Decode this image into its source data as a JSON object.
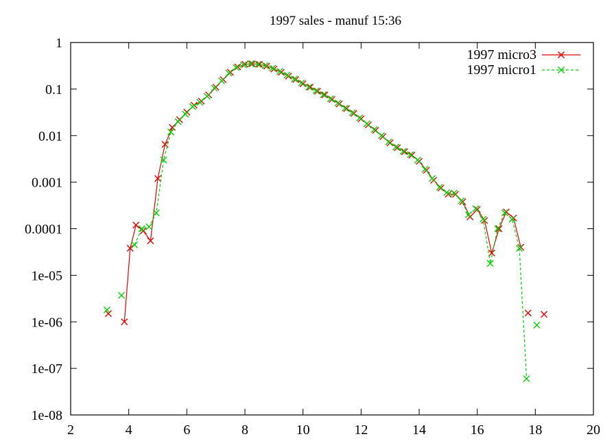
{
  "chart_data": {
    "type": "line",
    "title": "1997 sales - manuf 15:36",
    "xlabel": "",
    "ylabel": "",
    "xlim": [
      2,
      20
    ],
    "ylim": [
      1e-08,
      1
    ],
    "y_scale": "log",
    "x_ticks": [
      2,
      4,
      6,
      8,
      10,
      12,
      14,
      16,
      18,
      20
    ],
    "x_tick_labels": [
      "2",
      "4",
      "6",
      "8",
      "10",
      "12",
      "14",
      "16",
      "18",
      "20"
    ],
    "y_ticks": [
      1e-08,
      1e-07,
      1e-06,
      1e-05,
      0.0001,
      0.001,
      0.01,
      0.1,
      1
    ],
    "y_tick_labels": [
      "1e-08",
      "1e-07",
      "1e-06",
      "1e-05",
      "0.0001",
      "0.001",
      "0.01",
      "0.1",
      "1"
    ],
    "grid": false,
    "legend_position": "top-right",
    "series": [
      {
        "name": "1997 micro3",
        "color": "#e00000",
        "line_style": "solid",
        "marker": "x",
        "segments": [
          [
            [
              3.3,
              1.5e-06
            ]
          ],
          [
            [
              3.85,
              1e-06
            ],
            [
              4.05,
              3.8e-05
            ],
            [
              4.25,
              0.00012
            ],
            [
              4.5,
              9e-05
            ],
            [
              4.75,
              5.5e-05
            ],
            [
              5.0,
              0.0012
            ],
            [
              5.25,
              0.0065
            ],
            [
              5.5,
              0.015
            ],
            [
              5.75,
              0.022
            ],
            [
              6.0,
              0.032
            ],
            [
              6.25,
              0.045
            ],
            [
              6.5,
              0.055
            ],
            [
              6.75,
              0.075
            ],
            [
              7.0,
              0.11
            ],
            [
              7.25,
              0.16
            ],
            [
              7.5,
              0.23
            ],
            [
              7.75,
              0.3
            ],
            [
              8.0,
              0.34
            ],
            [
              8.25,
              0.35
            ],
            [
              8.5,
              0.34
            ],
            [
              8.75,
              0.31
            ],
            [
              9.0,
              0.27
            ],
            [
              9.25,
              0.23
            ],
            [
              9.5,
              0.19
            ],
            [
              9.75,
              0.16
            ],
            [
              10.0,
              0.13
            ],
            [
              10.25,
              0.11
            ],
            [
              10.5,
              0.09
            ],
            [
              10.75,
              0.075
            ],
            [
              11.0,
              0.06
            ],
            [
              11.25,
              0.048
            ],
            [
              11.5,
              0.038
            ],
            [
              11.75,
              0.03
            ],
            [
              12.0,
              0.023
            ],
            [
              12.25,
              0.017
            ],
            [
              12.5,
              0.013
            ],
            [
              12.75,
              0.0095
            ],
            [
              13.0,
              0.007
            ],
            [
              13.25,
              0.0055
            ],
            [
              13.5,
              0.0045
            ],
            [
              13.75,
              0.0038
            ],
            [
              14.0,
              0.0028
            ],
            [
              14.25,
              0.0018
            ],
            [
              14.5,
              0.0011
            ],
            [
              14.75,
              0.00075
            ],
            [
              15.0,
              0.00055
            ],
            [
              15.25,
              0.00055
            ],
            [
              15.5,
              0.00038
            ],
            [
              15.75,
              0.00018
            ],
            [
              16.0,
              0.00026
            ],
            [
              16.25,
              0.00015
            ],
            [
              16.5,
              3e-05
            ],
            [
              16.75,
              0.0001
            ],
            [
              17.0,
              0.00023
            ],
            [
              17.25,
              0.00017
            ],
            [
              17.5,
              4e-05
            ]
          ],
          [
            [
              17.75,
              1.55e-06
            ]
          ],
          [
            [
              18.3,
              1.45e-06
            ]
          ]
        ]
      },
      {
        "name": "1997 micro1",
        "color": "#00d000",
        "line_style": "dashed",
        "marker": "x",
        "segments": [
          [
            [
              3.25,
              1.8e-06
            ]
          ],
          [
            [
              3.75,
              3.7e-06
            ]
          ],
          [
            [
              4.2,
              4.5e-05
            ],
            [
              4.45,
              0.0001
            ],
            [
              4.7,
              0.00011
            ],
            [
              4.95,
              0.00022
            ],
            [
              5.2,
              0.003
            ],
            [
              5.45,
              0.012
            ],
            [
              5.7,
              0.02
            ],
            [
              5.95,
              0.029
            ],
            [
              6.2,
              0.042
            ],
            [
              6.45,
              0.052
            ],
            [
              6.7,
              0.07
            ],
            [
              6.95,
              0.105
            ],
            [
              7.2,
              0.15
            ],
            [
              7.45,
              0.22
            ],
            [
              7.7,
              0.29
            ],
            [
              7.95,
              0.33
            ],
            [
              8.2,
              0.35
            ],
            [
              8.45,
              0.34
            ],
            [
              8.7,
              0.32
            ],
            [
              8.95,
              0.28
            ],
            [
              9.2,
              0.24
            ],
            [
              9.45,
              0.2
            ],
            [
              9.7,
              0.165
            ],
            [
              9.95,
              0.135
            ],
            [
              10.2,
              0.11
            ],
            [
              10.45,
              0.092
            ],
            [
              10.7,
              0.076
            ],
            [
              10.95,
              0.062
            ],
            [
              11.2,
              0.05
            ],
            [
              11.45,
              0.039
            ],
            [
              11.7,
              0.031
            ],
            [
              11.95,
              0.024
            ],
            [
              12.2,
              0.018
            ],
            [
              12.45,
              0.0135
            ],
            [
              12.7,
              0.01
            ],
            [
              12.95,
              0.0073
            ],
            [
              13.2,
              0.0057
            ],
            [
              13.45,
              0.0046
            ],
            [
              13.7,
              0.0039
            ],
            [
              13.95,
              0.003
            ],
            [
              14.2,
              0.0019
            ],
            [
              14.45,
              0.0012
            ],
            [
              14.7,
              0.00078
            ],
            [
              14.95,
              0.0006
            ],
            [
              15.2,
              0.00058
            ],
            [
              15.45,
              0.0004
            ],
            [
              15.7,
              0.0002
            ],
            [
              15.95,
              0.00027
            ],
            [
              16.2,
              0.00016
            ],
            [
              16.45,
              1.8e-05
            ],
            [
              16.7,
              0.0001
            ],
            [
              16.95,
              0.00022
            ],
            [
              17.2,
              0.00016
            ],
            [
              17.45,
              3.8e-05
            ],
            [
              17.7,
              6e-08
            ]
          ],
          [
            [
              18.05,
              8.5e-07
            ]
          ]
        ]
      }
    ]
  }
}
